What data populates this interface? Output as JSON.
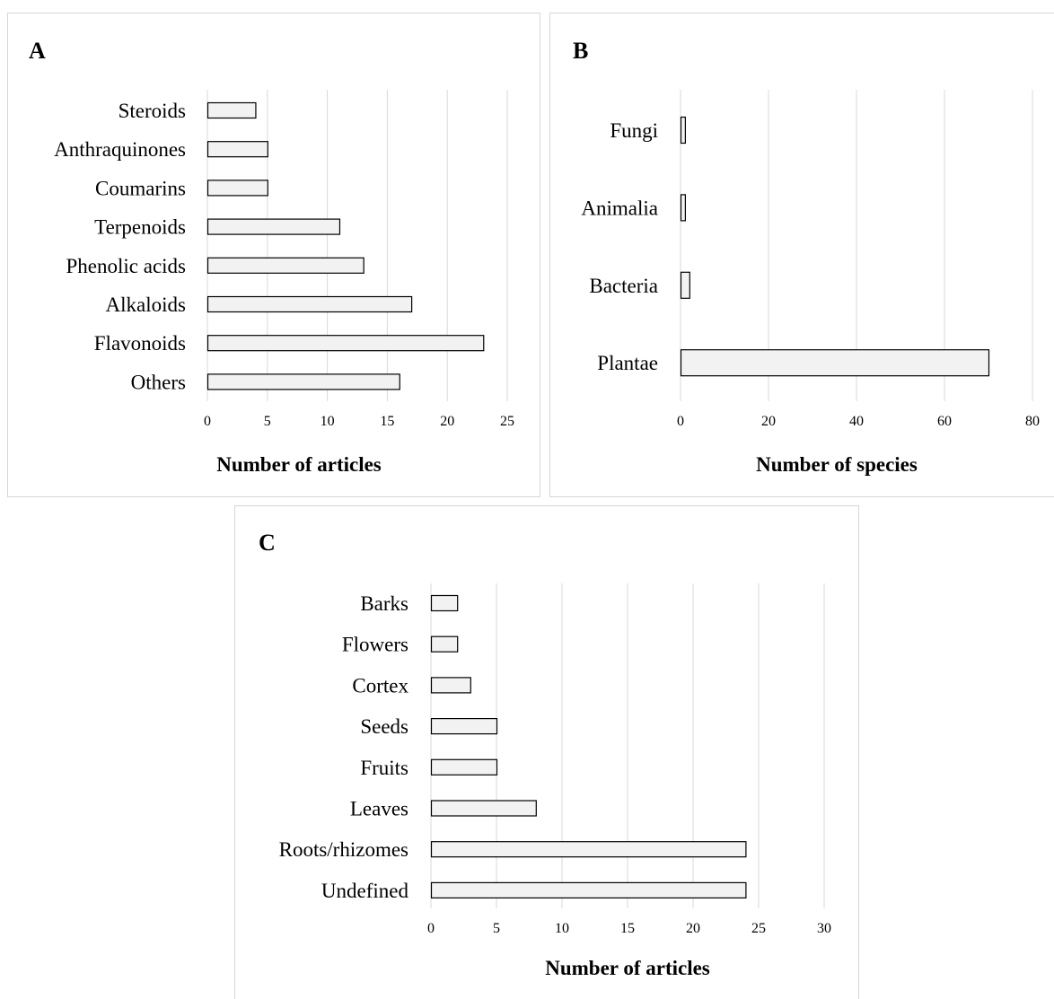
{
  "chart_data": [
    {
      "type": "bar",
      "orientation": "horizontal",
      "panel_label": "A",
      "categories": [
        "Steroids",
        "Anthraquinones",
        "Coumarins",
        "Terpenoids",
        "Phenolic acids",
        "Alkaloids",
        "Flavonoids",
        "Others"
      ],
      "values": [
        4,
        5,
        5,
        11,
        13,
        17,
        23,
        16
      ],
      "xlabel": "Number of articles",
      "ylabel": "",
      "xlim": [
        0,
        25
      ],
      "xticks": [
        "0",
        "5",
        "10",
        "15",
        "20",
        "25"
      ],
      "grid": true,
      "bar_color": "#f2f2f2",
      "edge_color": "#000000"
    },
    {
      "type": "bar",
      "orientation": "horizontal",
      "panel_label": "B",
      "categories": [
        "Fungi",
        "Animalia",
        "Bacteria",
        "Plantae"
      ],
      "values": [
        1,
        1,
        2,
        70
      ],
      "xlabel": "Number of species",
      "ylabel": "",
      "xlim": [
        0,
        80
      ],
      "xticks": [
        "0",
        "20",
        "40",
        "60",
        "80"
      ],
      "grid": true,
      "bar_color": "#f2f2f2",
      "edge_color": "#000000"
    },
    {
      "type": "bar",
      "orientation": "horizontal",
      "panel_label": "C",
      "categories": [
        "Barks",
        "Flowers",
        "Cortex",
        "Seeds",
        "Fruits",
        "Leaves",
        "Roots/rhizomes",
        "Undefined"
      ],
      "values": [
        2,
        2,
        3,
        5,
        5,
        8,
        24,
        24
      ],
      "xlabel": "Number of articles",
      "ylabel": "",
      "xlim": [
        0,
        30
      ],
      "xticks": [
        "0",
        "5",
        "10",
        "15",
        "20",
        "25",
        "30"
      ],
      "grid": true,
      "bar_color": "#f2f2f2",
      "edge_color": "#000000"
    }
  ]
}
